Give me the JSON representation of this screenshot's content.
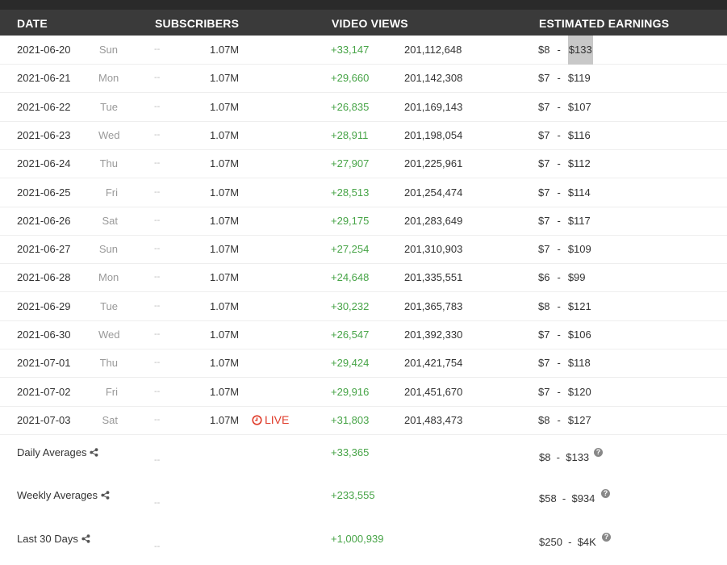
{
  "header": {
    "date": "DATE",
    "subscribers": "SUBSCRIBERS",
    "video_views": "VIDEO VIEWS",
    "earnings": "ESTIMATED EARNINGS"
  },
  "rows": [
    {
      "date": "2021-06-20",
      "dow": "Sun",
      "subs_change": "--",
      "subs": "1.07M",
      "live": "",
      "views_change": "+33,147",
      "views_total": "201,112,648",
      "earn_low": "$8",
      "earn_sep": "-",
      "earn_high": "$133",
      "highlight": true
    },
    {
      "date": "2021-06-21",
      "dow": "Mon",
      "subs_change": "--",
      "subs": "1.07M",
      "live": "",
      "views_change": "+29,660",
      "views_total": "201,142,308",
      "earn_low": "$7",
      "earn_sep": "-",
      "earn_high": "$119"
    },
    {
      "date": "2021-06-22",
      "dow": "Tue",
      "subs_change": "--",
      "subs": "1.07M",
      "live": "",
      "views_change": "+26,835",
      "views_total": "201,169,143",
      "earn_low": "$7",
      "earn_sep": "-",
      "earn_high": "$107"
    },
    {
      "date": "2021-06-23",
      "dow": "Wed",
      "subs_change": "--",
      "subs": "1.07M",
      "live": "",
      "views_change": "+28,911",
      "views_total": "201,198,054",
      "earn_low": "$7",
      "earn_sep": "-",
      "earn_high": "$116"
    },
    {
      "date": "2021-06-24",
      "dow": "Thu",
      "subs_change": "--",
      "subs": "1.07M",
      "live": "",
      "views_change": "+27,907",
      "views_total": "201,225,961",
      "earn_low": "$7",
      "earn_sep": "-",
      "earn_high": "$112"
    },
    {
      "date": "2021-06-25",
      "dow": "Fri",
      "subs_change": "--",
      "subs": "1.07M",
      "live": "",
      "views_change": "+28,513",
      "views_total": "201,254,474",
      "earn_low": "$7",
      "earn_sep": "-",
      "earn_high": "$114"
    },
    {
      "date": "2021-06-26",
      "dow": "Sat",
      "subs_change": "--",
      "subs": "1.07M",
      "live": "",
      "views_change": "+29,175",
      "views_total": "201,283,649",
      "earn_low": "$7",
      "earn_sep": "-",
      "earn_high": "$117"
    },
    {
      "date": "2021-06-27",
      "dow": "Sun",
      "subs_change": "--",
      "subs": "1.07M",
      "live": "",
      "views_change": "+27,254",
      "views_total": "201,310,903",
      "earn_low": "$7",
      "earn_sep": "-",
      "earn_high": "$109"
    },
    {
      "date": "2021-06-28",
      "dow": "Mon",
      "subs_change": "--",
      "subs": "1.07M",
      "live": "",
      "views_change": "+24,648",
      "views_total": "201,335,551",
      "earn_low": "$6",
      "earn_sep": "-",
      "earn_high": "$99"
    },
    {
      "date": "2021-06-29",
      "dow": "Tue",
      "subs_change": "--",
      "subs": "1.07M",
      "live": "",
      "views_change": "+30,232",
      "views_total": "201,365,783",
      "earn_low": "$8",
      "earn_sep": "-",
      "earn_high": "$121"
    },
    {
      "date": "2021-06-30",
      "dow": "Wed",
      "subs_change": "--",
      "subs": "1.07M",
      "live": "",
      "views_change": "+26,547",
      "views_total": "201,392,330",
      "earn_low": "$7",
      "earn_sep": "-",
      "earn_high": "$106"
    },
    {
      "date": "2021-07-01",
      "dow": "Thu",
      "subs_change": "--",
      "subs": "1.07M",
      "live": "",
      "views_change": "+29,424",
      "views_total": "201,421,754",
      "earn_low": "$7",
      "earn_sep": "-",
      "earn_high": "$118"
    },
    {
      "date": "2021-07-02",
      "dow": "Fri",
      "subs_change": "--",
      "subs": "1.07M",
      "live": "",
      "views_change": "+29,916",
      "views_total": "201,451,670",
      "earn_low": "$7",
      "earn_sep": "-",
      "earn_high": "$120"
    },
    {
      "date": "2021-07-03",
      "dow": "Sat",
      "subs_change": "--",
      "subs": "1.07M",
      "live": "LIVE",
      "views_change": "+31,803",
      "views_total": "201,483,473",
      "earn_low": "$8",
      "earn_sep": "-",
      "earn_high": "$127"
    }
  ],
  "averages": [
    {
      "label": "Daily Averages",
      "subs": "--",
      "views": "+33,365",
      "earnings": "$8  -  $133"
    },
    {
      "label": "Weekly Averages",
      "subs": "--",
      "views": "+233,555",
      "earnings": "$58  -  $934"
    },
    {
      "label": "Last 30 Days",
      "subs": "--",
      "views": "+1,000,939",
      "earnings": "$250  -  $4K"
    }
  ],
  "icons": {
    "share": "share-icon",
    "help": "help-icon",
    "live": "clock-icon"
  },
  "help_glyph": "?",
  "colors": {
    "header_bg": "#3a3a3a",
    "positive": "#47a447",
    "live": "#e03e2d"
  }
}
